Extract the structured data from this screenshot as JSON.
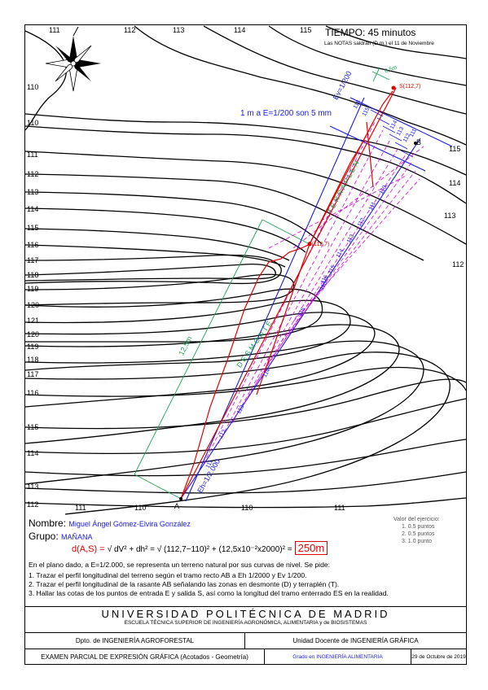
{
  "header": {
    "time": "TIEMPO: 45 minutos",
    "notes": "Las NOTAS saldrán (D.m.) el 11 de Noviembre"
  },
  "map": {
    "contour_labels_left": [
      "110",
      "110",
      "111",
      "112",
      "113",
      "114",
      "115",
      "116",
      "117",
      "118",
      "119",
      "120",
      "121",
      "120",
      "119",
      "118",
      "117",
      "116",
      "115",
      "114",
      "113",
      "112"
    ],
    "contour_labels_top": [
      "111",
      "112",
      "113",
      "114",
      "115"
    ],
    "contour_labels_right": [
      "115",
      "114",
      "113",
      "112"
    ],
    "contour_labels_bottom": [
      "111",
      "110",
      "110",
      "111"
    ],
    "scale_note": "1 m a E=1/200 son 5 mm",
    "ev_label": "Ev=1/200",
    "eh_label": "Eh=1/2.000",
    "point_a": "A",
    "point_b": "B",
    "point_s_top": "S(112,7)",
    "point_s_mid": "S(112,7)",
    "dim_short": "0,5m",
    "dim_long": "12,5m",
    "zone_terraplen": "T E R R A P L E N",
    "zone_desmonte": "D E S M O N T E",
    "profile_ticks_blue": [
      "116",
      "115",
      "114",
      "113",
      "112",
      "111"
    ],
    "profile_ticks_blue_upper": [
      "111",
      "112",
      "113",
      "114",
      "115",
      "116"
    ],
    "profile_ticks_grade": [
      "116",
      "115",
      "114",
      "113",
      "112",
      "111",
      "110"
    ],
    "colors": {
      "blue": "#1a1ae6",
      "red": "#e00000",
      "green": "#1aa35a",
      "magenta": "#e000e0"
    }
  },
  "info": {
    "name_label": "Nombre:",
    "name_value": "Miguel Ángel Gómez-Elvira González",
    "group_label": "Grupo:",
    "group_value": "MAÑANA",
    "formula_lhs": "d(A,S) =",
    "formula_mid": "√ dV² + dh²  =  √ (112,7−110)² + (12,5x10⁻²x2000)²  =",
    "formula_result": "250m",
    "valor_title": "Valor del ejercicio:",
    "valor_items": [
      "1.  0.5 puntos",
      "2.  0.5 puntos",
      "3.  1.0 punto"
    ],
    "statement": "En el plano dado, a E=1/2.000, se representa un terreno natural por sus curvas de nivel. Se pide:",
    "tasks": [
      "1.    Trazar el perfil longitudinal del terreno según el tramo recto AB a Eh 1/2000 y Ev 1/200.",
      "2.    Trazar el perfil longitudinal de la rasante AB señalando las zonas en desmonte (D) y terraplén (T).",
      "3.    Hallar las cotas de los puntos de entrada E y salida S, así como la longitud del tramo enterrado ES en la realidad."
    ]
  },
  "footer": {
    "university": "UNIVERSIDAD POLITÉCNICA DE MADRID",
    "school": "ESCUELA TÉCNICA SUPERIOR DE INGENIERÍA AGRONÓMICA, ALIMENTARIA y de BIOSISTEMAS",
    "dept": "Dpto. de INGENIERÍA AGROFORESTAL",
    "unit": "Unidad Docente de INGENIERÍA GRÁFICA",
    "exam": "EXAMEN PARCIAL DE EXPRESIÓN GRÁFICA (Acotados - Geometría)",
    "degree": "Grado en INGENIERÍA ALIMENTARIA",
    "date": "29 de Octubre de 2019"
  }
}
